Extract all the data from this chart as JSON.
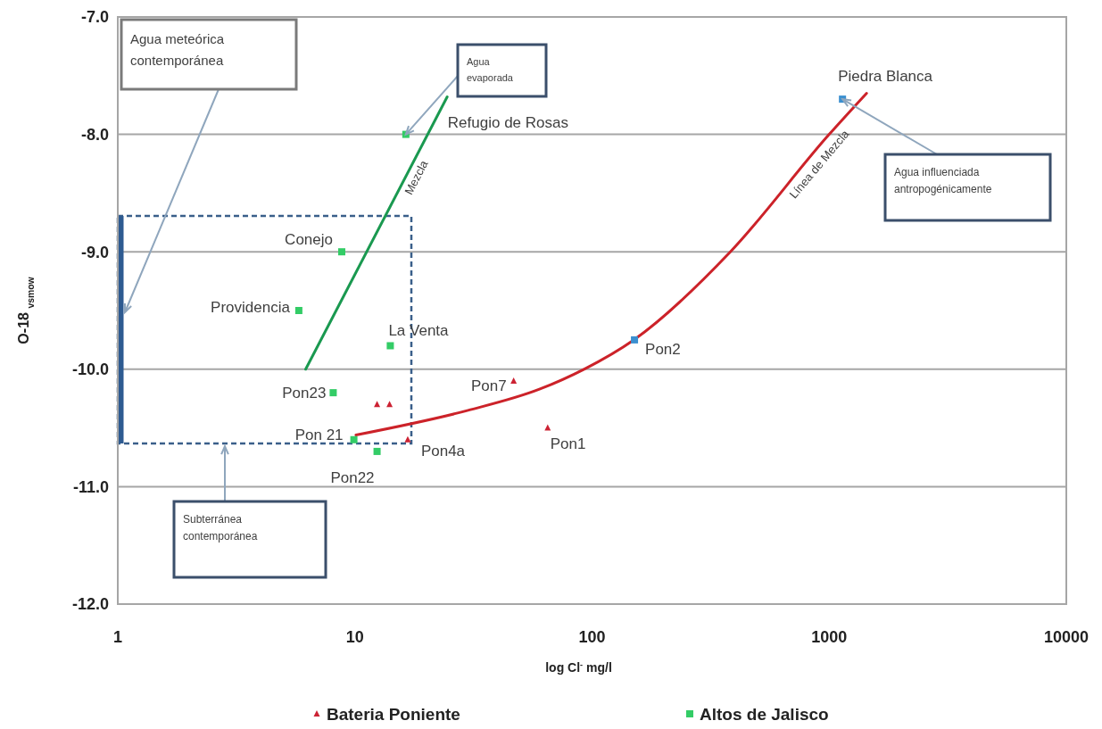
{
  "chart_data": {
    "type": "scatter",
    "xlabel": "log Cl$^{-}$ mg/l",
    "ylabel": "O-18 $_{vsmow}$",
    "log": "x",
    "xlim": [
      1,
      10000
    ],
    "xticks": [
      1,
      10,
      100,
      1000,
      10000
    ],
    "ylim": [
      -12,
      -7
    ],
    "yticks": [
      {
        "value": -12,
        "label": "-12.0"
      },
      {
        "value": -11,
        "label": "-11.0"
      },
      {
        "value": -10,
        "label": "-10.0"
      },
      {
        "value": -9,
        "label": "-9.0"
      },
      {
        "value": -8,
        "label": "-8.0"
      },
      {
        "value": -7,
        "label": "-7.0"
      }
    ],
    "grid": "y",
    "legend": "bottom",
    "series": [
      {
        "name": "Bateria Poniente",
        "color": "#cc2233",
        "marker": "triangle",
        "x": [
          12.4,
          14,
          16.7,
          46.7,
          65
        ],
        "values": [
          -10.3,
          -10.3,
          -10.6,
          -10.1,
          -10.5
        ]
      },
      {
        "name": "Altos de Jalisco",
        "color": "#33cc66",
        "marker": "square",
        "x": [
          16.4,
          8.8,
          5.8,
          14.1,
          8.1,
          9.9,
          12.4
        ],
        "values": [
          -8.0,
          -9.0,
          -9.5,
          -9.8,
          -10.2,
          -10.6,
          -10.7
        ]
      },
      {
        "color": "#3a8fd0",
        "marker": "square",
        "x": [
          151,
          1138
        ],
        "values": [
          -9.75,
          -7.7
        ]
      },
      {
        "name": "Mezcla",
        "type": "line",
        "color": "#1a9950",
        "x": [
          6.2,
          24.5
        ],
        "values": [
          -10.0,
          -7.68
        ]
      },
      {
        "name": "Línea de Mezcla",
        "type": "line",
        "color": "#cc2229",
        "x": [
          10.1,
          30,
          60,
          92.5,
          150,
          383,
          1000,
          1438
        ],
        "values": [
          -10.56,
          -10.35,
          -10.17,
          -10.0,
          -9.75,
          -9.0,
          -8.0,
          -7.65
        ]
      }
    ],
    "annotations": [
      {
        "text": "Refugio de Rosas",
        "x": 16.4,
        "y": -8.0
      },
      {
        "text": "Conejo",
        "x": 8.8,
        "y": -9.0
      },
      {
        "text": "Providencia",
        "x": 5.8,
        "y": -9.5
      },
      {
        "text": "La Venta",
        "x": 14.1,
        "y": -9.8
      },
      {
        "text": "Pon23",
        "x": 8.1,
        "y": -10.2
      },
      {
        "text": "Pon 21",
        "x": 9.9,
        "y": -10.6
      },
      {
        "text": "Pon22",
        "x": 12.4,
        "y": -10.7
      },
      {
        "text": "Pon4a",
        "x": 16.7,
        "y": -10.6
      },
      {
        "text": "Pon7",
        "x": 46.7,
        "y": -10.1
      },
      {
        "text": "Pon1",
        "x": 65,
        "y": -10.5
      },
      {
        "text": "Pon2",
        "x": 151,
        "y": -9.75
      },
      {
        "text": "Piedra Blanca",
        "x": 1138,
        "y": -7.7
      },
      "Agua meteórica contemporánea",
      {
        "text": "Agua evaporada",
        "x": 16.4,
        "y": -8.0
      },
      {
        "text": "Agua influenciada antropogénicamente",
        "x": 1138,
        "y": -7.7
      },
      "Subterránea contemporánea"
    ]
  }
}
